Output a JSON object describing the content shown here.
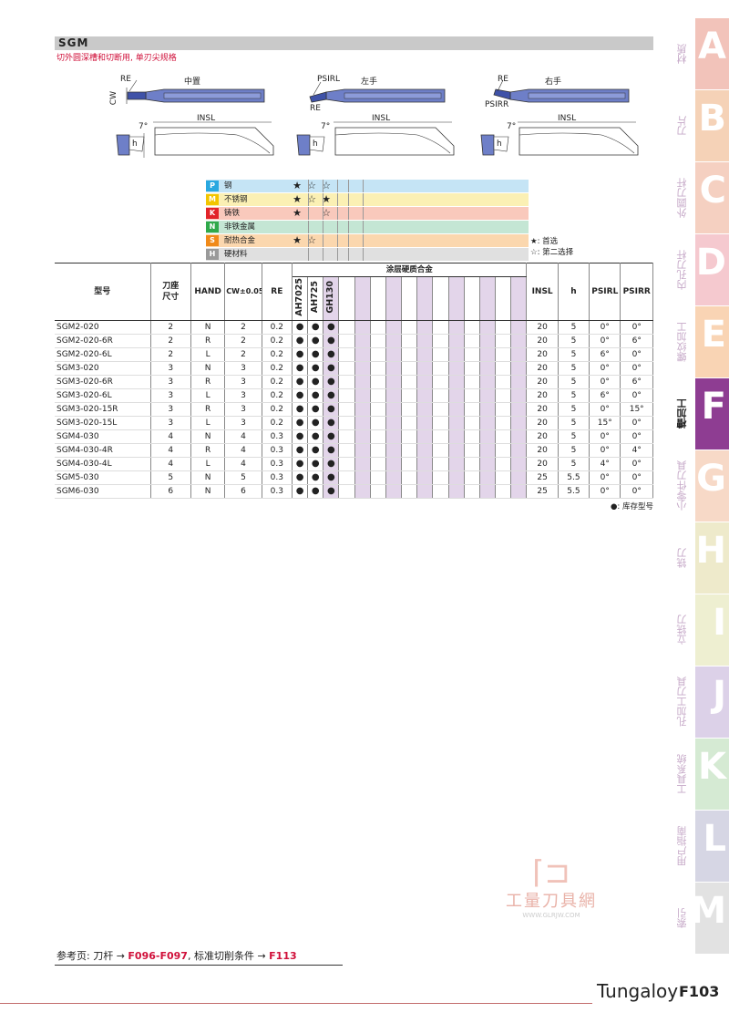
{
  "header": {
    "code": "SGM",
    "subtitle": "切外圆深槽和切断用, 单刃尖规格"
  },
  "drawings": [
    {
      "title": "中置",
      "labels": [
        "RE",
        "CW",
        "INSL",
        "7°",
        "h"
      ]
    },
    {
      "title": "左手",
      "labels": [
        "PSIRL",
        "RE",
        "INSL",
        "7°",
        "h"
      ]
    },
    {
      "title": "右手",
      "labels": [
        "RE",
        "PSIRR",
        "INSL",
        "7°",
        "h"
      ]
    }
  ],
  "grade_legend": [
    {
      "code": "P",
      "name": "钢",
      "color": "#29a8e0",
      "bg": "#c5e4f5",
      "marks": [
        "★",
        "☆",
        "☆"
      ]
    },
    {
      "code": "M",
      "name": "不锈钢",
      "color": "#f2c500",
      "bg": "#fbf0b4",
      "marks": [
        "★",
        "☆",
        "★"
      ]
    },
    {
      "code": "K",
      "name": "铸铁",
      "color": "#e2242a",
      "bg": "#f9c9bc",
      "marks": [
        "★",
        "",
        "☆"
      ]
    },
    {
      "code": "N",
      "name": "非铁金属",
      "color": "#2fa94a",
      "bg": "#c4e6d4",
      "marks": [
        "",
        "",
        ""
      ]
    },
    {
      "code": "S",
      "name": "耐热合金",
      "color": "#f08a1a",
      "bg": "#fbd7ae",
      "marks": [
        "★",
        "☆",
        ""
      ]
    },
    {
      "code": "H",
      "name": "硬材料",
      "color": "#9a9a9a",
      "bg": "#e0e0e0",
      "marks": [
        "",
        "",
        ""
      ]
    }
  ],
  "legend_notes": {
    "first": "★: 首选",
    "second": "☆: 第二选择"
  },
  "table": {
    "headers": {
      "model": "型号",
      "holder": "刀座\n尺寸",
      "hand": "HAND",
      "cw": "CW±0.05",
      "re": "RE",
      "group": "涂层硬质合金",
      "grades": [
        "AH7025",
        "AH725",
        "GH130"
      ],
      "insl": "INSL",
      "h": "h",
      "psirl": "PSIRL",
      "psirr": "PSIRR"
    },
    "rows": [
      {
        "model": "SGM2-020",
        "size": "2",
        "hand": "N",
        "cw": "2",
        "re": "0.2",
        "stock": [
          "●",
          "●",
          "●"
        ],
        "insl": "20",
        "h": "5",
        "psirl": "0°",
        "psirr": "0°"
      },
      {
        "model": "SGM2-020-6R",
        "size": "2",
        "hand": "R",
        "cw": "2",
        "re": "0.2",
        "stock": [
          "●",
          "●",
          "●"
        ],
        "insl": "20",
        "h": "5",
        "psirl": "0°",
        "psirr": "6°"
      },
      {
        "model": "SGM2-020-6L",
        "size": "2",
        "hand": "L",
        "cw": "2",
        "re": "0.2",
        "stock": [
          "●",
          "●",
          "●"
        ],
        "insl": "20",
        "h": "5",
        "psirl": "6°",
        "psirr": "0°"
      },
      {
        "model": "SGM3-020",
        "size": "3",
        "hand": "N",
        "cw": "3",
        "re": "0.2",
        "stock": [
          "●",
          "●",
          "●"
        ],
        "insl": "20",
        "h": "5",
        "psirl": "0°",
        "psirr": "0°"
      },
      {
        "model": "SGM3-020-6R",
        "size": "3",
        "hand": "R",
        "cw": "3",
        "re": "0.2",
        "stock": [
          "●",
          "●",
          "●"
        ],
        "insl": "20",
        "h": "5",
        "psirl": "0°",
        "psirr": "6°"
      },
      {
        "model": "SGM3-020-6L",
        "size": "3",
        "hand": "L",
        "cw": "3",
        "re": "0.2",
        "stock": [
          "●",
          "●",
          "●"
        ],
        "insl": "20",
        "h": "5",
        "psirl": "6°",
        "psirr": "0°"
      },
      {
        "model": "SGM3-020-15R",
        "size": "3",
        "hand": "R",
        "cw": "3",
        "re": "0.2",
        "stock": [
          "●",
          "●",
          "●"
        ],
        "insl": "20",
        "h": "5",
        "psirl": "0°",
        "psirr": "15°"
      },
      {
        "model": "SGM3-020-15L",
        "size": "3",
        "hand": "L",
        "cw": "3",
        "re": "0.2",
        "stock": [
          "●",
          "●",
          "●"
        ],
        "insl": "20",
        "h": "5",
        "psirl": "15°",
        "psirr": "0°"
      },
      {
        "model": "SGM4-030",
        "size": "4",
        "hand": "N",
        "cw": "4",
        "re": "0.3",
        "stock": [
          "●",
          "●",
          "●"
        ],
        "insl": "20",
        "h": "5",
        "psirl": "0°",
        "psirr": "0°"
      },
      {
        "model": "SGM4-030-4R",
        "size": "4",
        "hand": "R",
        "cw": "4",
        "re": "0.3",
        "stock": [
          "●",
          "●",
          "●"
        ],
        "insl": "20",
        "h": "5",
        "psirl": "0°",
        "psirr": "4°"
      },
      {
        "model": "SGM4-030-4L",
        "size": "4",
        "hand": "L",
        "cw": "4",
        "re": "0.3",
        "stock": [
          "●",
          "●",
          "●"
        ],
        "insl": "20",
        "h": "5",
        "psirl": "4°",
        "psirr": "0°"
      },
      {
        "model": "SGM5-030",
        "size": "5",
        "hand": "N",
        "cw": "5",
        "re": "0.3",
        "stock": [
          "●",
          "●",
          "●"
        ],
        "insl": "25",
        "h": "5.5",
        "psirl": "0°",
        "psirr": "0°"
      },
      {
        "model": "SGM6-030",
        "size": "6",
        "hand": "N",
        "cw": "6",
        "re": "0.3",
        "stock": [
          "●",
          "●",
          "●"
        ],
        "insl": "25",
        "h": "5.5",
        "psirl": "0°",
        "psirr": "0°"
      }
    ],
    "stock_note": "●: 库存型号"
  },
  "side_tabs": [
    {
      "letter": "A",
      "label": "材质",
      "color": "#f2c3ba",
      "active": false
    },
    {
      "letter": "B",
      "label": "刀片",
      "color": "#f5d2b7",
      "active": false
    },
    {
      "letter": "C",
      "label": "外圆刀杆",
      "color": "#f5d0c1",
      "active": false
    },
    {
      "letter": "D",
      "label": "内孔刀杆",
      "color": "#f5c9cf",
      "active": false
    },
    {
      "letter": "E",
      "label": "螺纹加工",
      "color": "#f9d4b4",
      "active": false
    },
    {
      "letter": "F",
      "label": "槽加工",
      "color": "#8e3d92",
      "active": true
    },
    {
      "letter": "G",
      "label": "小零件刀具",
      "color": "#f7d9c7",
      "active": false
    },
    {
      "letter": "H",
      "label": "铣刀",
      "color": "#eeeacb",
      "active": false
    },
    {
      "letter": "I",
      "label": "立铣刀",
      "color": "#eeefd1",
      "active": false
    },
    {
      "letter": "J",
      "label": "孔加工刀具",
      "color": "#dcd1e8",
      "active": false
    },
    {
      "letter": "K",
      "label": "工具系统",
      "color": "#d5ead3",
      "active": false
    },
    {
      "letter": "L",
      "label": "用户指南",
      "color": "#d6d6e4",
      "active": false
    },
    {
      "letter": "M",
      "label": "索引",
      "color": "#e2e2e2",
      "active": false
    }
  ],
  "footer": {
    "ref_prefix": "参考页: 刀杆 →",
    "ref_link1": "F096-F097",
    "ref_mid": ", 标准切削条件 →",
    "ref_link2": "F113",
    "brand": "Tungaloy",
    "page": "F103"
  },
  "watermark": {
    "name": "工量刀具網",
    "url": "WWW.GLRJW.COM"
  }
}
